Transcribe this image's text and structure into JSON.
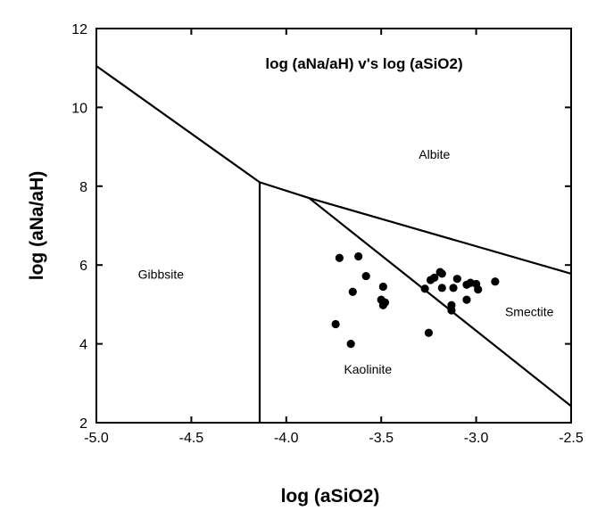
{
  "chart_data": {
    "type": "scatter",
    "title": "log  (aNa/aH)  v's  log  (aSiO2)",
    "xlabel": "log  (aSiO2)",
    "ylabel": "log  (aNa/aH)",
    "xlim": [
      -5.0,
      -2.5
    ],
    "ylim": [
      2,
      12
    ],
    "x_ticks": [
      -5.0,
      -4.5,
      -4.0,
      -3.5,
      -3.0,
      -2.5
    ],
    "x_tick_labels": [
      "-5.0",
      "-4.5",
      "-4.0",
      "-3.5",
      "-3.0",
      "-2.5"
    ],
    "y_ticks": [
      2,
      4,
      6,
      8,
      10,
      12
    ],
    "y_tick_labels": [
      "2",
      "4",
      "6",
      "8",
      "10",
      "12"
    ],
    "grid": false,
    "boundaries": [
      {
        "name": "gibbsite-albite",
        "x": [
          -5.0,
          -4.14
        ],
        "y": [
          11.05,
          8.1
        ]
      },
      {
        "name": "kaolinite-albite",
        "x": [
          -4.14,
          -3.88
        ],
        "y": [
          8.1,
          7.7
        ]
      },
      {
        "name": "smectite-albite",
        "x": [
          -3.88,
          -2.5
        ],
        "y": [
          7.7,
          5.78
        ]
      },
      {
        "name": "gibbsite-kaolinite",
        "x": [
          -4.14,
          -4.14
        ],
        "y": [
          8.1,
          2.0
        ]
      },
      {
        "name": "kaolinite-smectite",
        "x": [
          -3.88,
          -2.5
        ],
        "y": [
          7.7,
          2.42
        ]
      }
    ],
    "region_labels": [
      {
        "text": "Albite",
        "x": -3.22,
        "y": 8.7
      },
      {
        "text": "Gibbsite",
        "x": -4.66,
        "y": 5.65
      },
      {
        "text": "Smectite",
        "x": -2.72,
        "y": 4.7
      },
      {
        "text": "Kaolinite",
        "x": -3.57,
        "y": 3.25
      }
    ],
    "points": [
      {
        "x": -3.72,
        "y": 6.18
      },
      {
        "x": -3.62,
        "y": 6.22
      },
      {
        "x": -3.58,
        "y": 5.72
      },
      {
        "x": -3.65,
        "y": 5.32
      },
      {
        "x": -3.74,
        "y": 4.5
      },
      {
        "x": -3.66,
        "y": 4.0
      },
      {
        "x": -3.49,
        "y": 5.45
      },
      {
        "x": -3.5,
        "y": 5.12
      },
      {
        "x": -3.48,
        "y": 5.05
      },
      {
        "x": -3.49,
        "y": 4.98
      },
      {
        "x": -3.27,
        "y": 5.4
      },
      {
        "x": -3.24,
        "y": 5.62
      },
      {
        "x": -3.22,
        "y": 5.68
      },
      {
        "x": -3.19,
        "y": 5.82
      },
      {
        "x": -3.18,
        "y": 5.78
      },
      {
        "x": -3.18,
        "y": 5.42
      },
      {
        "x": -3.12,
        "y": 5.42
      },
      {
        "x": -3.1,
        "y": 5.65
      },
      {
        "x": -3.05,
        "y": 5.5
      },
      {
        "x": -3.03,
        "y": 5.55
      },
      {
        "x": -3.0,
        "y": 5.52
      },
      {
        "x": -2.99,
        "y": 5.38
      },
      {
        "x": -2.9,
        "y": 5.58
      },
      {
        "x": -3.05,
        "y": 5.12
      },
      {
        "x": -3.13,
        "y": 4.98
      },
      {
        "x": -3.13,
        "y": 4.85
      },
      {
        "x": -3.25,
        "y": 4.28
      }
    ]
  }
}
